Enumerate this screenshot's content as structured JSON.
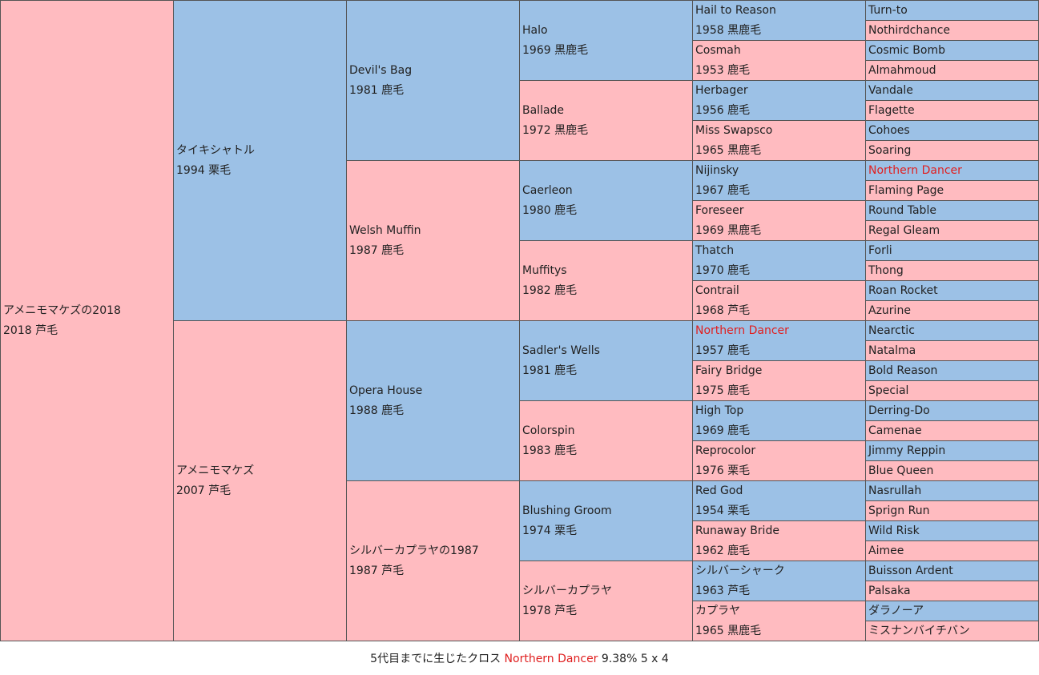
{
  "colors": {
    "male": "#9cc1e6",
    "female": "#ffbbc0",
    "highlight": "#e02020"
  },
  "horse": {
    "name": "アメニモマケズの2018",
    "info": "2018 芦毛"
  },
  "sire": {
    "name": "タイキシャトル",
    "info": "1994 栗毛"
  },
  "dam": {
    "name": "アメニモマケズ",
    "info": "2007 芦毛"
  },
  "g3": [
    {
      "name": "Devil's Bag",
      "info": "1981 鹿毛"
    },
    {
      "name": "Welsh Muffin",
      "info": "1987 鹿毛"
    },
    {
      "name": "Opera House",
      "info": "1988 鹿毛"
    },
    {
      "name": "シルバーカプラヤの1987",
      "info": "1987 芦毛"
    }
  ],
  "g4": [
    {
      "name": "Halo",
      "info": "1969 黒鹿毛"
    },
    {
      "name": "Ballade",
      "info": "1972 黒鹿毛"
    },
    {
      "name": "Caerleon",
      "info": "1980 鹿毛"
    },
    {
      "name": "Muffitys",
      "info": "1982 鹿毛"
    },
    {
      "name": "Sadler's Wells",
      "info": "1981 鹿毛"
    },
    {
      "name": "Colorspin",
      "info": "1983 鹿毛"
    },
    {
      "name": "Blushing Groom",
      "info": "1974 栗毛"
    },
    {
      "name": "シルバーカプラヤ",
      "info": "1978 芦毛"
    }
  ],
  "g5": [
    {
      "name": "Hail to Reason",
      "info": "1958 黒鹿毛"
    },
    {
      "name": "Cosmah",
      "info": "1953 鹿毛"
    },
    {
      "name": "Herbager",
      "info": "1956 鹿毛"
    },
    {
      "name": "Miss Swapsco",
      "info": "1965 黒鹿毛"
    },
    {
      "name": "Nijinsky",
      "info": "1967 鹿毛"
    },
    {
      "name": "Foreseer",
      "info": "1969 黒鹿毛"
    },
    {
      "name": "Thatch",
      "info": "1970 鹿毛"
    },
    {
      "name": "Contrail",
      "info": "1968 芦毛"
    },
    {
      "name": "Northern Dancer",
      "info": "1957 鹿毛",
      "highlight": true
    },
    {
      "name": "Fairy Bridge",
      "info": "1975 鹿毛"
    },
    {
      "name": "High Top",
      "info": "1969 鹿毛"
    },
    {
      "name": "Reprocolor",
      "info": "1976 栗毛"
    },
    {
      "name": "Red God",
      "info": "1954 栗毛"
    },
    {
      "name": "Runaway Bride",
      "info": "1962 鹿毛"
    },
    {
      "name": "シルバーシャーク",
      "info": "1963 芦毛"
    },
    {
      "name": "カプラヤ",
      "info": "1965 黒鹿毛"
    }
  ],
  "g6": [
    {
      "name": "Turn-to"
    },
    {
      "name": "Nothirdchance"
    },
    {
      "name": "Cosmic Bomb"
    },
    {
      "name": "Almahmoud"
    },
    {
      "name": "Vandale"
    },
    {
      "name": "Flagette"
    },
    {
      "name": "Cohoes"
    },
    {
      "name": "Soaring"
    },
    {
      "name": "Northern Dancer",
      "highlight": true
    },
    {
      "name": "Flaming Page"
    },
    {
      "name": "Round Table"
    },
    {
      "name": "Regal Gleam"
    },
    {
      "name": "Forli"
    },
    {
      "name": "Thong"
    },
    {
      "name": "Roan Rocket"
    },
    {
      "name": "Azurine"
    },
    {
      "name": "Nearctic"
    },
    {
      "name": "Natalma"
    },
    {
      "name": "Bold Reason"
    },
    {
      "name": "Special"
    },
    {
      "name": "Derring-Do"
    },
    {
      "name": "Camenae"
    },
    {
      "name": "Jimmy Reppin"
    },
    {
      "name": "Blue Queen"
    },
    {
      "name": "Nasrullah"
    },
    {
      "name": "Sprign Run"
    },
    {
      "name": "Wild Risk"
    },
    {
      "name": "Aimee"
    },
    {
      "name": "Buisson Ardent"
    },
    {
      "name": "Palsaka"
    },
    {
      "name": "ダラノーア"
    },
    {
      "name": "ミスナンバイチバン"
    }
  ],
  "footer": {
    "prefix": "5代目までに生じたクロス",
    "cross_name": "Northern Dancer",
    "cross_detail": "9.38% 5 x 4"
  }
}
